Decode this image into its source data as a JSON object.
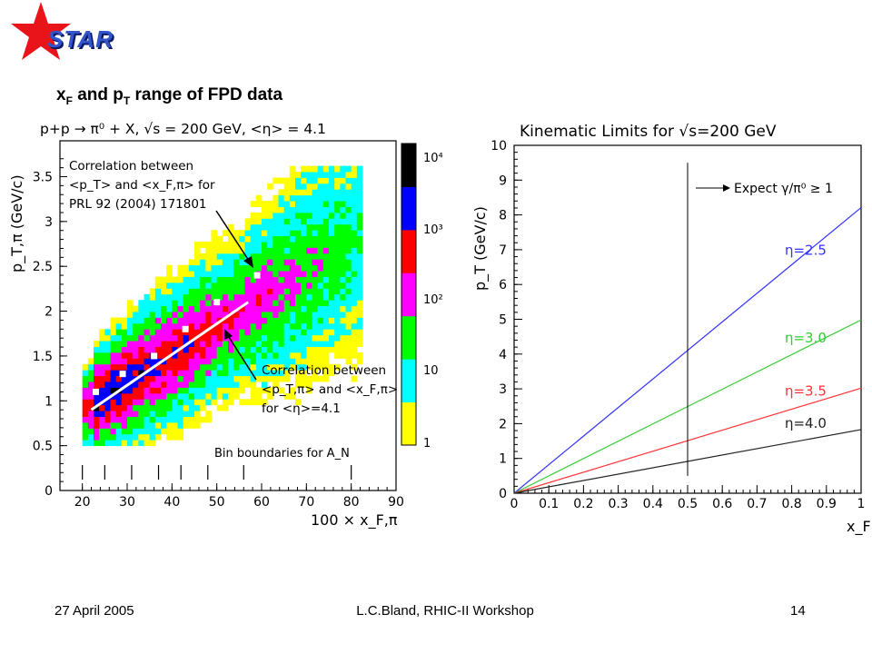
{
  "logo": {
    "text": "STAR"
  },
  "slide_title": {
    "main": "x",
    "sub_f": "F",
    "mid": " and p",
    "sub_t": "T",
    "rest": " range of FPD data"
  },
  "footer": {
    "date": "27 April 2005",
    "author": "L.C.Bland, RHIC-II Workshop",
    "page": "14"
  },
  "chart_data": [
    {
      "type": "heatmap",
      "title": "p+p → π⁰ + X, √s = 200 GeV, <η> = 4.1",
      "xlabel": "100 × x_F,π",
      "ylabel": "p_T,π (GeV/c)",
      "xlim": [
        15,
        90
      ],
      "ylim": [
        0,
        3.9
      ],
      "x_ticks": [
        "20",
        "30",
        "40",
        "50",
        "60",
        "70",
        "80",
        "90"
      ],
      "y_ticks": [
        "0",
        "0.5",
        "1",
        "1.5",
        "2",
        "2.5",
        "3",
        "3.5"
      ],
      "colorbar_labels": [
        "1",
        "10",
        "10²",
        "10³",
        "10⁴"
      ],
      "colorbar_colors": [
        "#ffff00",
        "#00ffff",
        "#00ff00",
        "#ff00ff",
        "#ff0000",
        "#0000ff",
        "#000000"
      ],
      "mean_points": [
        {
          "x": 23,
          "y": 1.1
        },
        {
          "x": 29,
          "y": 1.3
        },
        {
          "x": 36,
          "y": 1.5
        },
        {
          "x": 43,
          "y": 1.8
        },
        {
          "x": 50,
          "y": 2.1
        },
        {
          "x": 59,
          "y": 2.4
        }
      ],
      "fit_line": [
        {
          "x": 22,
          "y": 0.9
        },
        {
          "x": 57,
          "y": 2.1
        }
      ],
      "bin_boundaries": [
        20,
        25,
        31,
        37,
        42,
        48,
        56,
        80
      ],
      "annotations": {
        "prl_line1": "Correlation between",
        "prl_line2": "<p_T> and <x_F,π> for",
        "prl_line3": "PRL 92 (2004) 171801",
        "fpd_line1": "Correlation between",
        "fpd_line2": "<p_T,π> and <x_F,π>",
        "fpd_line3": "for <η>=4.1",
        "bins": "Bin boundaries for A_N"
      }
    },
    {
      "type": "line",
      "title": "Kinematic Limits for √s=200 GeV",
      "xlabel": "x_F",
      "ylabel": "p_T (GeV/c)",
      "xlim": [
        0,
        1
      ],
      "ylim": [
        0,
        10
      ],
      "x_ticks": [
        "0",
        "0.1",
        "0.2",
        "0.3",
        "0.4",
        "0.5",
        "0.6",
        "0.7",
        "0.8",
        "0.9",
        "1"
      ],
      "y_ticks": [
        "0",
        "1",
        "2",
        "3",
        "4",
        "5",
        "6",
        "7",
        "8",
        "9",
        "10"
      ],
      "series": [
        {
          "name": "η=2.5",
          "color": "#3333ff",
          "x": [
            0,
            1
          ],
          "y": [
            0,
            8.21
          ]
        },
        {
          "name": "η=3.0",
          "color": "#33cc33",
          "x": [
            0,
            1
          ],
          "y": [
            0,
            4.98
          ]
        },
        {
          "name": "η=3.5",
          "color": "#ff3333",
          "x": [
            0,
            1
          ],
          "y": [
            0,
            3.02
          ]
        },
        {
          "name": "η=4.0",
          "color": "#222222",
          "x": [
            0,
            1
          ],
          "y": [
            0,
            1.83
          ]
        }
      ],
      "vline_x": 0.5,
      "annotation": "Expect γ/π⁰ ≥ 1"
    }
  ]
}
